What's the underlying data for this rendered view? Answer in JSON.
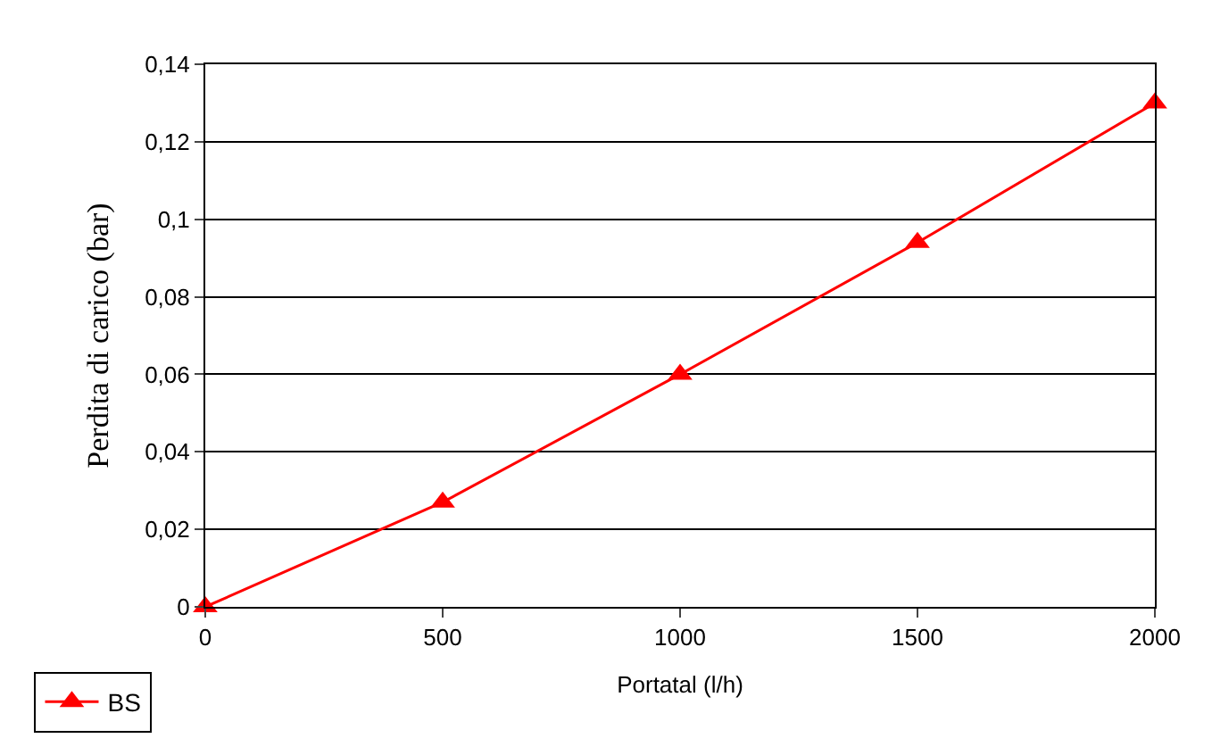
{
  "chart_data": {
    "type": "line",
    "xlabel": "Portatal (l/h)",
    "ylabel": "Perdita di carico (bar)",
    "x": [
      0,
      500,
      1000,
      1500,
      2000
    ],
    "series": [
      {
        "name": "BS",
        "color": "#ff0000",
        "values": [
          0,
          0.027,
          0.06,
          0.094,
          0.13
        ]
      }
    ],
    "xlim": [
      0,
      2000
    ],
    "xticks": [
      0,
      500,
      1000,
      1500,
      2000
    ],
    "ylim": [
      0,
      0.14
    ],
    "yticks": [
      {
        "value": 0,
        "label": "0"
      },
      {
        "value": 0.02,
        "label": "0,02"
      },
      {
        "value": 0.04,
        "label": "0,04"
      },
      {
        "value": 0.06,
        "label": "0,06"
      },
      {
        "value": 0.08,
        "label": "0,08"
      },
      {
        "value": 0.1,
        "label": "0,1"
      },
      {
        "value": 0.12,
        "label": "0,12"
      },
      {
        "value": 0.14,
        "label": "0,14"
      }
    ],
    "grid": "y",
    "legend": "bottom left",
    "marker": "triangle",
    "line_style": "solid"
  }
}
